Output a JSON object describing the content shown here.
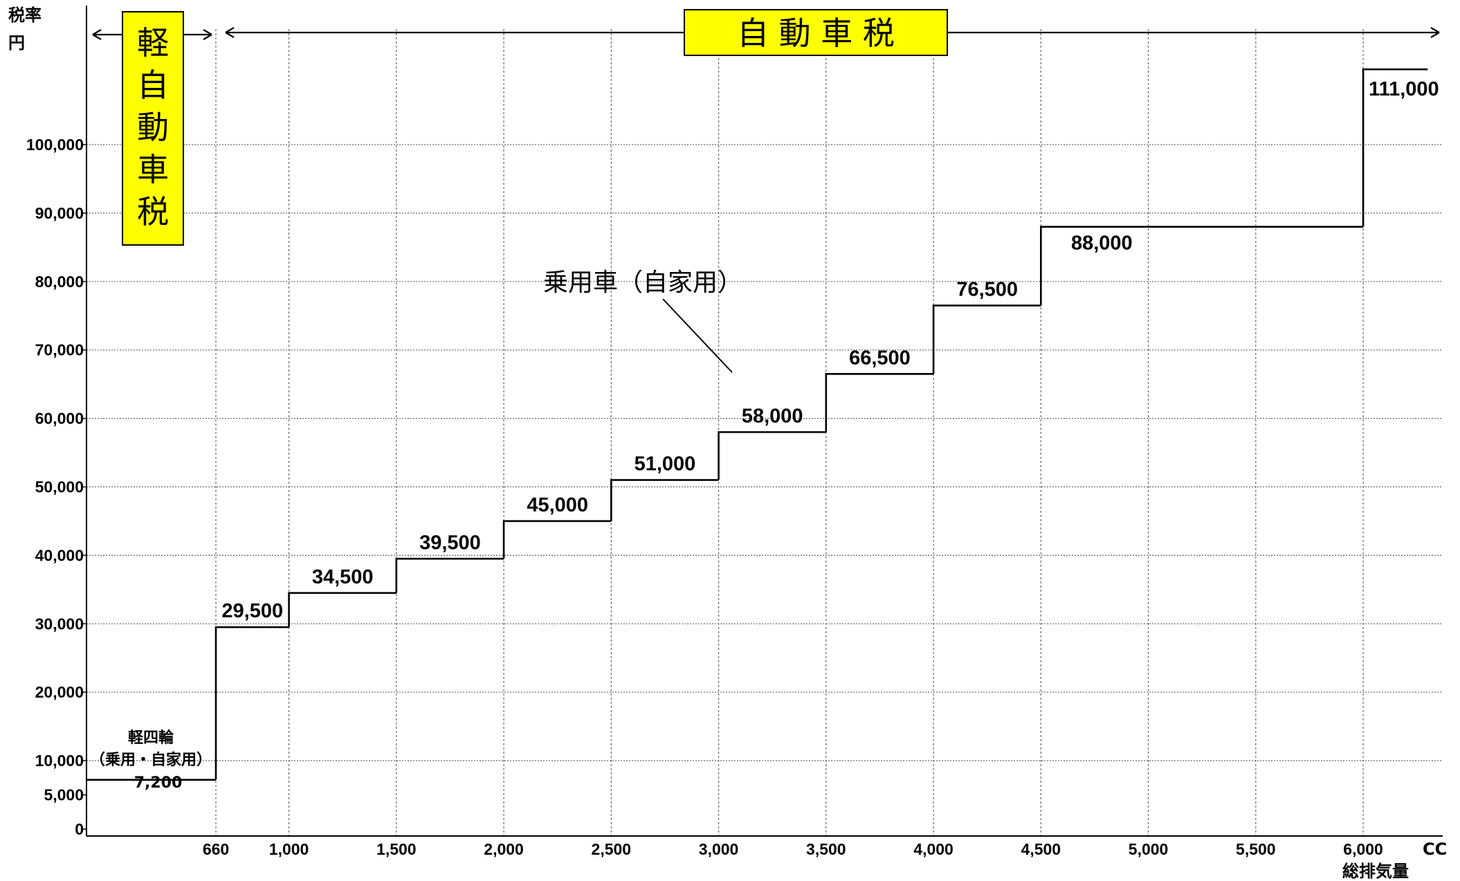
{
  "chart_data": {
    "type": "line",
    "step": true,
    "title": "",
    "ylabel": [
      "税率",
      "円"
    ],
    "xlabel": "総排気量",
    "x_unit": "CC",
    "xlim": [
      0,
      6300
    ],
    "ylim": [
      0,
      105000
    ],
    "grid": true,
    "x_ticks": [
      {
        "value": 660,
        "label": "660"
      },
      {
        "value": 1000,
        "label": "1,000"
      },
      {
        "value": 1500,
        "label": "1,500"
      },
      {
        "value": 2000,
        "label": "2,000"
      },
      {
        "value": 2500,
        "label": "2,500"
      },
      {
        "value": 3000,
        "label": "3,000"
      },
      {
        "value": 3500,
        "label": "3,500"
      },
      {
        "value": 4000,
        "label": "4,000"
      },
      {
        "value": 4500,
        "label": "4,500"
      },
      {
        "value": 5000,
        "label": "5,000"
      },
      {
        "value": 5500,
        "label": "5,500"
      },
      {
        "value": 6000,
        "label": "6,000"
      }
    ],
    "y_ticks": [
      {
        "value": 0,
        "label": "0"
      },
      {
        "value": 5000,
        "label": "5,000"
      },
      {
        "value": 10000,
        "label": "10,000"
      },
      {
        "value": 20000,
        "label": "20,000"
      },
      {
        "value": 30000,
        "label": "30,000"
      },
      {
        "value": 40000,
        "label": "40,000"
      },
      {
        "value": 50000,
        "label": "50,000"
      },
      {
        "value": 60000,
        "label": "60,000"
      },
      {
        "value": 70000,
        "label": "70,000"
      },
      {
        "value": 80000,
        "label": "80,000"
      },
      {
        "value": 90000,
        "label": "90,000"
      },
      {
        "value": 100000,
        "label": "100,000"
      }
    ],
    "steps": [
      {
        "from": 0,
        "to": 660,
        "value": 7200,
        "label": "7,200"
      },
      {
        "from": 660,
        "to": 1000,
        "value": 29500,
        "label": "29,500"
      },
      {
        "from": 1000,
        "to": 1500,
        "value": 34500,
        "label": "34,500"
      },
      {
        "from": 1500,
        "to": 2000,
        "value": 39500,
        "label": "39,500"
      },
      {
        "from": 2000,
        "to": 2500,
        "value": 45000,
        "label": "45,000"
      },
      {
        "from": 2500,
        "to": 3000,
        "value": 51000,
        "label": "51,000"
      },
      {
        "from": 3000,
        "to": 3500,
        "value": 58000,
        "label": "58,000"
      },
      {
        "from": 3500,
        "to": 4000,
        "value": 66500,
        "label": "66,500"
      },
      {
        "from": 4000,
        "to": 4500,
        "value": 76500,
        "label": "76,500"
      },
      {
        "from": 4500,
        "to": 6000,
        "value": 88000,
        "label": "88,000"
      },
      {
        "from": 6000,
        "to": 6300,
        "value": 111000,
        "label": "111,000"
      }
    ],
    "annotations": {
      "kei_region": {
        "label": "軽自動車税",
        "from": 0,
        "to": 660
      },
      "car_region": {
        "label": "自 動 車 税",
        "from": 660,
        "to": 6300
      },
      "kei_note": [
        "軽四輪",
        "（乗用・自家用）"
      ],
      "pointer": {
        "label": "乗用車（自家用）",
        "x": 3000,
        "y": 55000
      }
    },
    "colors": {
      "highlight_box": "#FFFF00",
      "line": "#000000",
      "grid": "#555555"
    }
  }
}
